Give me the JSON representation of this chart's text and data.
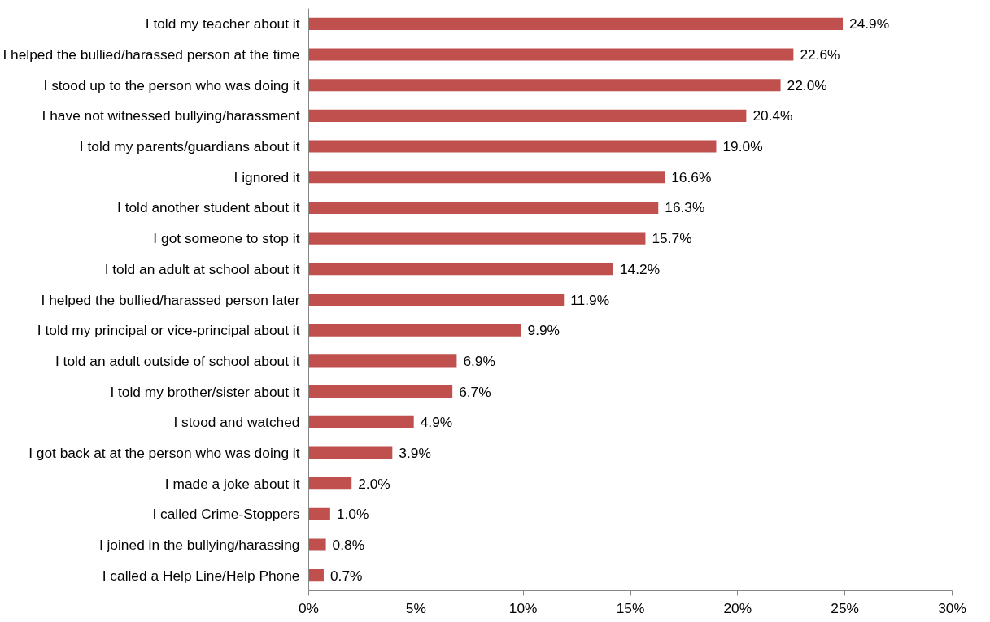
{
  "chart_data": {
    "type": "bar",
    "orientation": "horizontal",
    "categories": [
      "I told my teacher about it",
      "I helped the bullied/harassed person at the time",
      "I stood up to the person who was doing it",
      "I have not witnessed bullying/harassment",
      "I told my parents/guardians about it",
      "I ignored it",
      "I told another student about it",
      "I got someone to stop it",
      "I told an adult at school about it",
      "I helped the bullied/harassed person later",
      "I told my principal or vice-principal about it",
      "I told an adult outside of school about it",
      "I told my brother/sister about it",
      "I stood and watched",
      "I got back at at the person who was doing it",
      "I made a joke about it",
      "I called Crime-Stoppers",
      "I joined in the bullying/harassing",
      "I called a Help Line/Help Phone"
    ],
    "values": [
      24.9,
      22.6,
      22.0,
      20.4,
      19.0,
      16.6,
      16.3,
      15.7,
      14.2,
      11.9,
      9.9,
      6.9,
      6.7,
      4.9,
      3.9,
      2.0,
      1.0,
      0.8,
      0.7
    ],
    "value_labels": [
      "24.9%",
      "22.6%",
      "22.0%",
      "20.4%",
      "19.0%",
      "16.6%",
      "16.3%",
      "15.7%",
      "14.2%",
      "11.9%",
      "9.9%",
      "6.9%",
      "6.7%",
      "4.9%",
      "3.9%",
      "2.0%",
      "1.0%",
      "0.8%",
      "0.7%"
    ],
    "color": "#c0504d",
    "xlim": [
      0,
      30
    ],
    "xticks": [
      {
        "value": 0,
        "label": "0%"
      },
      {
        "value": 5,
        "label": "5%"
      },
      {
        "value": 10,
        "label": "10%"
      },
      {
        "value": 15,
        "label": "15%"
      },
      {
        "value": 20,
        "label": "20%"
      },
      {
        "value": 25,
        "label": "25%"
      },
      {
        "value": 30,
        "label": "30%"
      }
    ],
    "grid": false
  }
}
